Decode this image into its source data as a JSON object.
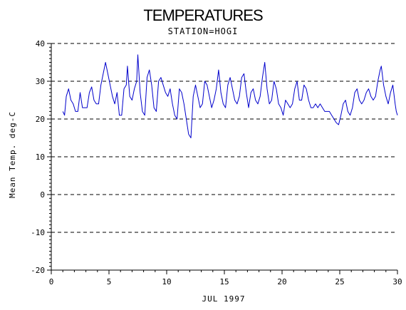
{
  "chart_data": {
    "type": "line",
    "title": "TEMPERATURES",
    "subtitle": "STATION=HOGI",
    "xlabel": "JUL 1997",
    "ylabel": "Mean Temp. deg-C",
    "xlim": [
      0,
      30
    ],
    "ylim": [
      -20,
      40
    ],
    "x_ticks": [
      0,
      5,
      10,
      15,
      20,
      25,
      30
    ],
    "y_ticks": [
      -20,
      -10,
      0,
      10,
      20,
      30,
      40
    ],
    "gridlines_y": [
      -20,
      -10,
      0,
      10,
      20,
      30,
      40
    ],
    "grid": "dashed horizontal",
    "line_color": "#0000cc",
    "series": [
      {
        "values": [
          [
            1.0,
            22
          ],
          [
            1.15,
            21
          ],
          [
            1.3,
            26
          ],
          [
            1.5,
            28
          ],
          [
            1.7,
            25
          ],
          [
            1.9,
            24
          ],
          [
            2.1,
            22
          ],
          [
            2.3,
            22
          ],
          [
            2.5,
            27
          ],
          [
            2.7,
            23
          ],
          [
            2.9,
            23
          ],
          [
            3.1,
            23
          ],
          [
            3.3,
            27
          ],
          [
            3.5,
            28.5
          ],
          [
            3.7,
            25
          ],
          [
            3.9,
            24
          ],
          [
            4.1,
            24
          ],
          [
            4.3,
            29
          ],
          [
            4.5,
            32
          ],
          [
            4.7,
            35
          ],
          [
            4.9,
            32
          ],
          [
            5.1,
            29
          ],
          [
            5.3,
            26
          ],
          [
            5.5,
            24
          ],
          [
            5.7,
            27
          ],
          [
            5.9,
            21
          ],
          [
            6.1,
            21
          ],
          [
            6.3,
            28
          ],
          [
            6.5,
            29
          ],
          [
            6.6,
            34
          ],
          [
            6.8,
            26
          ],
          [
            7.0,
            25
          ],
          [
            7.2,
            28
          ],
          [
            7.4,
            30
          ],
          [
            7.5,
            37
          ],
          [
            7.7,
            27
          ],
          [
            7.9,
            22
          ],
          [
            8.1,
            21
          ],
          [
            8.3,
            31
          ],
          [
            8.5,
            33
          ],
          [
            8.7,
            29
          ],
          [
            8.9,
            23
          ],
          [
            9.1,
            22
          ],
          [
            9.3,
            30
          ],
          [
            9.5,
            31
          ],
          [
            9.7,
            29
          ],
          [
            9.9,
            27
          ],
          [
            10.1,
            26
          ],
          [
            10.3,
            28
          ],
          [
            10.5,
            24
          ],
          [
            10.7,
            21
          ],
          [
            10.9,
            20
          ],
          [
            11.1,
            28
          ],
          [
            11.3,
            27
          ],
          [
            11.5,
            24
          ],
          [
            11.7,
            20
          ],
          [
            11.9,
            16
          ],
          [
            12.1,
            15
          ],
          [
            12.3,
            26
          ],
          [
            12.5,
            29
          ],
          [
            12.7,
            26
          ],
          [
            12.9,
            23
          ],
          [
            13.1,
            24
          ],
          [
            13.3,
            30
          ],
          [
            13.5,
            29
          ],
          [
            13.7,
            26
          ],
          [
            13.9,
            23
          ],
          [
            14.1,
            25
          ],
          [
            14.3,
            28
          ],
          [
            14.5,
            33
          ],
          [
            14.7,
            27
          ],
          [
            14.9,
            24
          ],
          [
            15.1,
            23
          ],
          [
            15.3,
            29
          ],
          [
            15.5,
            31
          ],
          [
            15.7,
            28
          ],
          [
            15.9,
            25
          ],
          [
            16.1,
            24
          ],
          [
            16.3,
            26
          ],
          [
            16.5,
            31
          ],
          [
            16.7,
            32
          ],
          [
            16.9,
            27
          ],
          [
            17.1,
            23
          ],
          [
            17.3,
            27
          ],
          [
            17.5,
            28
          ],
          [
            17.7,
            25
          ],
          [
            17.9,
            24
          ],
          [
            18.1,
            26
          ],
          [
            18.3,
            31
          ],
          [
            18.5,
            35
          ],
          [
            18.7,
            28
          ],
          [
            18.9,
            24
          ],
          [
            19.1,
            25
          ],
          [
            19.3,
            30
          ],
          [
            19.5,
            28
          ],
          [
            19.7,
            24
          ],
          [
            19.9,
            23
          ],
          [
            20.1,
            21
          ],
          [
            20.3,
            25
          ],
          [
            20.5,
            24
          ],
          [
            20.7,
            23
          ],
          [
            20.9,
            24
          ],
          [
            21.1,
            28
          ],
          [
            21.3,
            30
          ],
          [
            21.5,
            25
          ],
          [
            21.7,
            25
          ],
          [
            21.9,
            29
          ],
          [
            22.1,
            28
          ],
          [
            22.3,
            25
          ],
          [
            22.5,
            23
          ],
          [
            22.7,
            23
          ],
          [
            22.9,
            24
          ],
          [
            23.1,
            23
          ],
          [
            23.3,
            24
          ],
          [
            23.5,
            23
          ],
          [
            23.7,
            22
          ],
          [
            23.9,
            22
          ],
          [
            24.1,
            22
          ],
          [
            24.3,
            21
          ],
          [
            24.5,
            20
          ],
          [
            24.7,
            19
          ],
          [
            24.9,
            18.5
          ],
          [
            25.1,
            21
          ],
          [
            25.3,
            24
          ],
          [
            25.5,
            25
          ],
          [
            25.7,
            22
          ],
          [
            25.9,
            21
          ],
          [
            26.1,
            23
          ],
          [
            26.3,
            27
          ],
          [
            26.5,
            28
          ],
          [
            26.7,
            25
          ],
          [
            26.9,
            24
          ],
          [
            27.1,
            25
          ],
          [
            27.3,
            27
          ],
          [
            27.5,
            28
          ],
          [
            27.7,
            26
          ],
          [
            27.9,
            25
          ],
          [
            28.1,
            26
          ],
          [
            28.3,
            30
          ],
          [
            28.5,
            33
          ],
          [
            28.6,
            34
          ],
          [
            28.8,
            29
          ],
          [
            29.0,
            26
          ],
          [
            29.2,
            24
          ],
          [
            29.4,
            27
          ],
          [
            29.6,
            29
          ],
          [
            29.8,
            24
          ],
          [
            29.9,
            22
          ],
          [
            30.0,
            21
          ]
        ]
      }
    ]
  }
}
